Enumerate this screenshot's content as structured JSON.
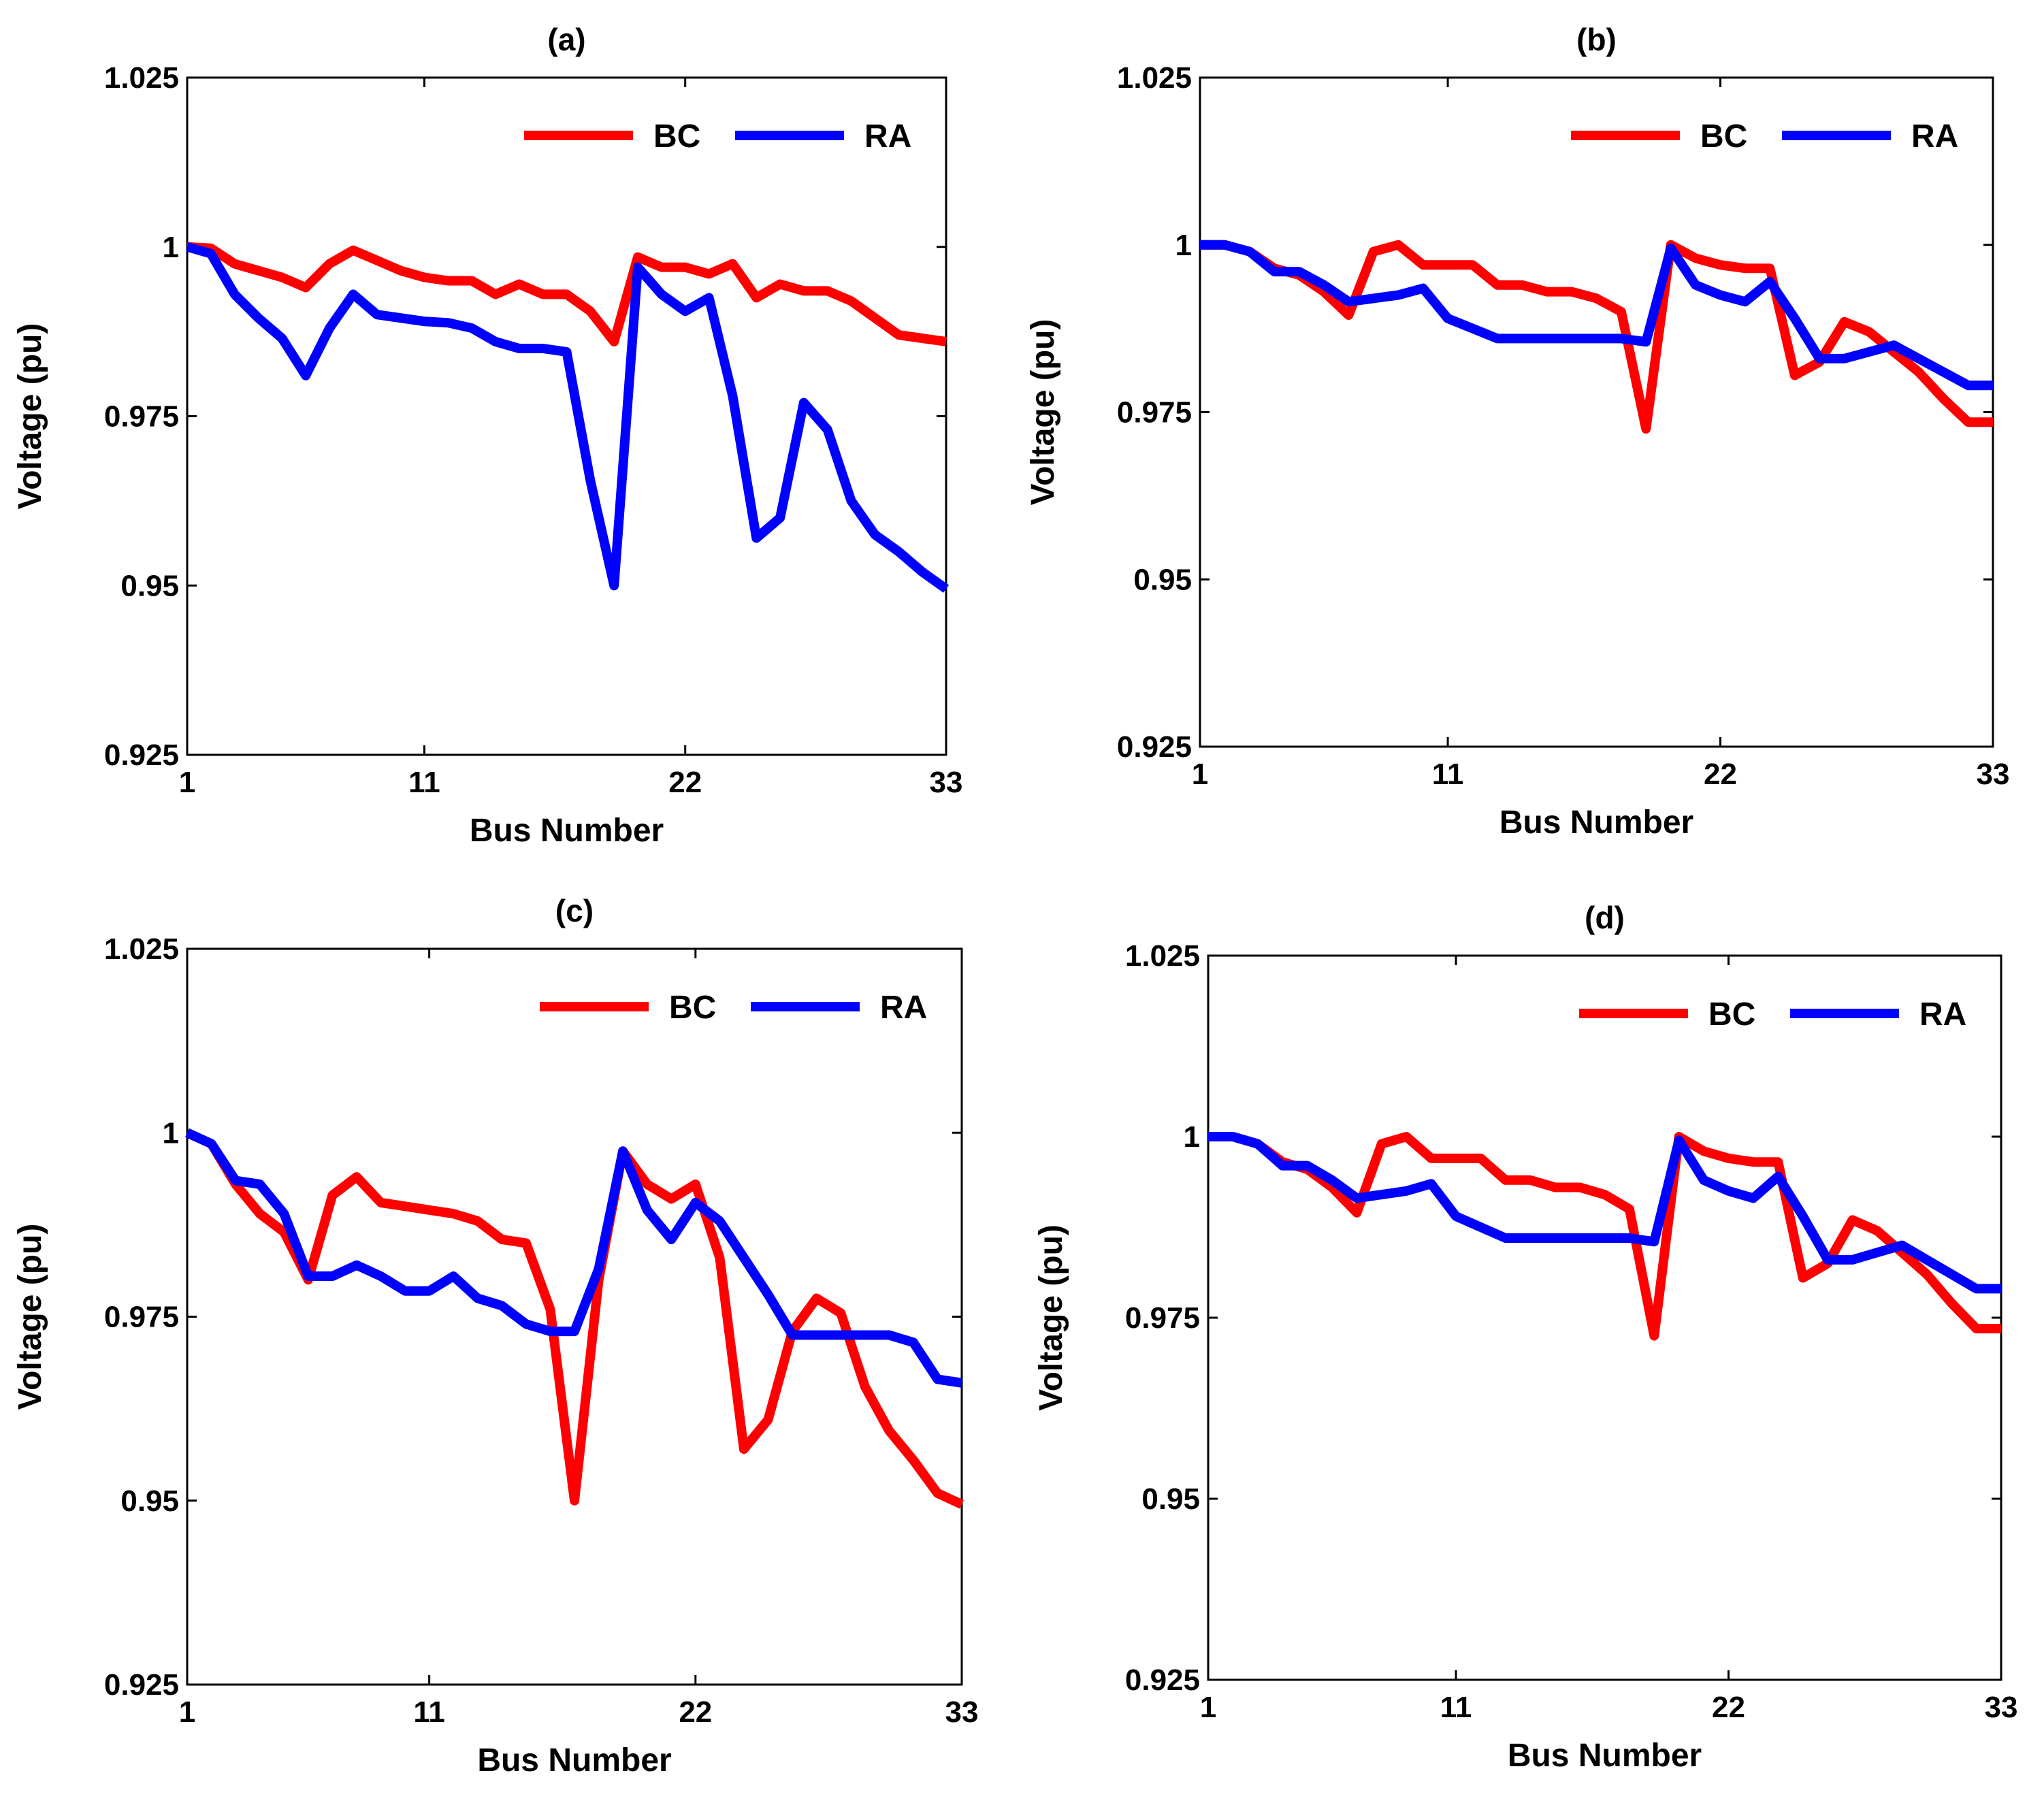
{
  "chart_data": [
    {
      "type": "line",
      "title": "(a)",
      "xlabel": "Bus Number",
      "ylabel": "Voltage (pu)",
      "xlim": [
        1,
        33
      ],
      "ylim": [
        0.925,
        1.025
      ],
      "xticks": [
        1,
        11,
        22,
        33
      ],
      "yticks": [
        0.925,
        0.95,
        0.975,
        1,
        1.025
      ],
      "ytick_labels": [
        "0.925",
        "0.95",
        "0.975",
        "1",
        "1.025"
      ],
      "legend_position": "top-right",
      "series": [
        {
          "name": "BC",
          "color": "#ff0000",
          "x": [
            1,
            2,
            3,
            4,
            5,
            6,
            7,
            8,
            9,
            10,
            11,
            12,
            13,
            14,
            15,
            16,
            17,
            18,
            19,
            20,
            21,
            22,
            23,
            24,
            25,
            26,
            27,
            28,
            29,
            30,
            31,
            32,
            33
          ],
          "values": [
            1.0,
            0.9998,
            0.9975,
            0.9965,
            0.9955,
            0.994,
            0.9975,
            0.9995,
            0.998,
            0.9965,
            0.9955,
            0.995,
            0.995,
            0.993,
            0.9945,
            0.993,
            0.993,
            0.9905,
            0.986,
            0.9985,
            0.997,
            0.997,
            0.996,
            0.9975,
            0.9925,
            0.9945,
            0.9935,
            0.9935,
            0.992,
            0.9895,
            0.987,
            0.9865,
            0.986
          ]
        },
        {
          "name": "RA",
          "color": "#0000ff",
          "x": [
            1,
            2,
            3,
            4,
            5,
            6,
            7,
            8,
            9,
            10,
            11,
            12,
            13,
            14,
            15,
            16,
            17,
            18,
            19,
            20,
            21,
            22,
            23,
            24,
            25,
            26,
            27,
            28,
            29,
            30,
            31,
            32,
            33
          ],
          "values": [
            1.0,
            0.999,
            0.993,
            0.9895,
            0.9865,
            0.981,
            0.988,
            0.993,
            0.99,
            0.9895,
            0.989,
            0.9888,
            0.988,
            0.986,
            0.985,
            0.985,
            0.9845,
            0.9655,
            0.95,
            0.997,
            0.993,
            0.9905,
            0.9925,
            0.978,
            0.957,
            0.96,
            0.977,
            0.973,
            0.9625,
            0.9575,
            0.955,
            0.952,
            0.9495
          ]
        }
      ]
    },
    {
      "type": "line",
      "title": "(b)",
      "xlabel": "Bus Number",
      "ylabel": "Voltage (pu)",
      "xlim": [
        1,
        33
      ],
      "ylim": [
        0.925,
        1.025
      ],
      "xticks": [
        1,
        11,
        22,
        33
      ],
      "yticks": [
        0.925,
        0.95,
        0.975,
        1,
        1.025
      ],
      "ytick_labels": [
        "0.925",
        "0.95",
        "0.975",
        "1",
        "1.025"
      ],
      "legend_position": "top-right",
      "series": [
        {
          "name": "BC",
          "color": "#ff0000",
          "x": [
            1,
            2,
            3,
            4,
            5,
            6,
            7,
            8,
            9,
            10,
            11,
            12,
            13,
            14,
            15,
            16,
            17,
            18,
            19,
            20,
            21,
            22,
            23,
            24,
            25,
            26,
            27,
            28,
            29,
            30,
            31,
            32,
            33
          ],
          "values": [
            1.0,
            1.0,
            0.999,
            0.9965,
            0.9955,
            0.993,
            0.9895,
            0.999,
            1.0,
            0.997,
            0.997,
            0.997,
            0.994,
            0.994,
            0.993,
            0.993,
            0.992,
            0.99,
            0.9725,
            1.0,
            0.998,
            0.997,
            0.9965,
            0.9965,
            0.9805,
            0.9825,
            0.9885,
            0.987,
            0.984,
            0.981,
            0.977,
            0.9735,
            0.9735
          ]
        },
        {
          "name": "RA",
          "color": "#0000ff",
          "x": [
            1,
            2,
            3,
            4,
            5,
            6,
            7,
            8,
            9,
            10,
            11,
            12,
            13,
            14,
            15,
            16,
            17,
            18,
            19,
            20,
            21,
            22,
            23,
            24,
            25,
            26,
            27,
            28,
            29,
            30,
            31,
            32,
            33
          ],
          "values": [
            1.0,
            1.0,
            0.999,
            0.996,
            0.996,
            0.994,
            0.9915,
            0.992,
            0.9925,
            0.9935,
            0.989,
            0.9875,
            0.986,
            0.986,
            0.986,
            0.986,
            0.986,
            0.986,
            0.9855,
            0.9995,
            0.994,
            0.9925,
            0.9915,
            0.9945,
            0.989,
            0.983,
            0.983,
            0.984,
            0.985,
            0.983,
            0.981,
            0.979,
            0.979
          ]
        }
      ]
    },
    {
      "type": "line",
      "title": "(c)",
      "xlabel": "Bus Number",
      "ylabel": "Voltage (pu)",
      "xlim": [
        1,
        33
      ],
      "ylim": [
        0.925,
        1.025
      ],
      "xticks": [
        1,
        11,
        22,
        33
      ],
      "yticks": [
        0.925,
        0.95,
        0.975,
        1,
        1.025
      ],
      "ytick_labels": [
        "0.925",
        "0.95",
        "0.975",
        "1",
        "1.025"
      ],
      "legend_position": "top-right",
      "series": [
        {
          "name": "BC",
          "color": "#ff0000",
          "x": [
            1,
            2,
            3,
            4,
            5,
            6,
            7,
            8,
            9,
            10,
            11,
            12,
            13,
            14,
            15,
            16,
            17,
            18,
            19,
            20,
            21,
            22,
            23,
            24,
            25,
            26,
            27,
            28,
            29,
            30,
            31,
            32,
            33
          ],
          "values": [
            1.0,
            0.9985,
            0.993,
            0.989,
            0.9865,
            0.98,
            0.9915,
            0.994,
            0.9905,
            0.99,
            0.9895,
            0.989,
            0.988,
            0.9855,
            0.985,
            0.976,
            0.95,
            0.98,
            0.9975,
            0.993,
            0.991,
            0.993,
            0.983,
            0.957,
            0.961,
            0.973,
            0.9775,
            0.9755,
            0.9655,
            0.9595,
            0.9555,
            0.951,
            0.9495
          ]
        },
        {
          "name": "RA",
          "color": "#0000ff",
          "x": [
            1,
            2,
            3,
            4,
            5,
            6,
            7,
            8,
            9,
            10,
            11,
            12,
            13,
            14,
            15,
            16,
            17,
            18,
            19,
            20,
            21,
            22,
            23,
            24,
            25,
            26,
            27,
            28,
            29,
            30,
            31,
            32,
            33
          ],
          "values": [
            1.0,
            0.9985,
            0.9935,
            0.993,
            0.989,
            0.9805,
            0.9805,
            0.982,
            0.9805,
            0.9785,
            0.9785,
            0.9805,
            0.9775,
            0.9765,
            0.974,
            0.973,
            0.973,
            0.9815,
            0.9975,
            0.9895,
            0.9855,
            0.9905,
            0.988,
            0.983,
            0.978,
            0.9725,
            0.9725,
            0.9725,
            0.9725,
            0.9725,
            0.9715,
            0.9665,
            0.966
          ]
        }
      ]
    },
    {
      "type": "line",
      "title": "(d)",
      "xlabel": "Bus Number",
      "ylabel": "Voltage (pu)",
      "xlim": [
        1,
        33
      ],
      "ylim": [
        0.925,
        1.025
      ],
      "xticks": [
        1,
        11,
        22,
        33
      ],
      "yticks": [
        0.925,
        0.95,
        0.975,
        1,
        1.025
      ],
      "ytick_labels": [
        "0.925",
        "0.95",
        "0.975",
        "1",
        "1.025"
      ],
      "legend_position": "top-right",
      "series": [
        {
          "name": "BC",
          "color": "#ff0000",
          "x": [
            1,
            2,
            3,
            4,
            5,
            6,
            7,
            8,
            9,
            10,
            11,
            12,
            13,
            14,
            15,
            16,
            17,
            18,
            19,
            20,
            21,
            22,
            23,
            24,
            25,
            26,
            27,
            28,
            29,
            30,
            31,
            32,
            33
          ],
          "values": [
            1.0,
            1.0,
            0.999,
            0.9965,
            0.9955,
            0.993,
            0.9895,
            0.999,
            1.0,
            0.997,
            0.997,
            0.997,
            0.994,
            0.994,
            0.993,
            0.993,
            0.992,
            0.99,
            0.9725,
            1.0,
            0.998,
            0.997,
            0.9965,
            0.9965,
            0.9805,
            0.9825,
            0.9885,
            0.987,
            0.984,
            0.981,
            0.977,
            0.9735,
            0.9735
          ]
        },
        {
          "name": "RA",
          "color": "#0000ff",
          "x": [
            1,
            2,
            3,
            4,
            5,
            6,
            7,
            8,
            9,
            10,
            11,
            12,
            13,
            14,
            15,
            16,
            17,
            18,
            19,
            20,
            21,
            22,
            23,
            24,
            25,
            26,
            27,
            28,
            29,
            30,
            31,
            32,
            33
          ],
          "values": [
            1.0,
            1.0,
            0.999,
            0.996,
            0.996,
            0.994,
            0.9915,
            0.992,
            0.9925,
            0.9935,
            0.989,
            0.9875,
            0.986,
            0.986,
            0.986,
            0.986,
            0.986,
            0.986,
            0.9855,
            0.9995,
            0.994,
            0.9925,
            0.9915,
            0.9945,
            0.989,
            0.983,
            0.983,
            0.984,
            0.985,
            0.983,
            0.981,
            0.979,
            0.979
          ]
        }
      ]
    }
  ]
}
